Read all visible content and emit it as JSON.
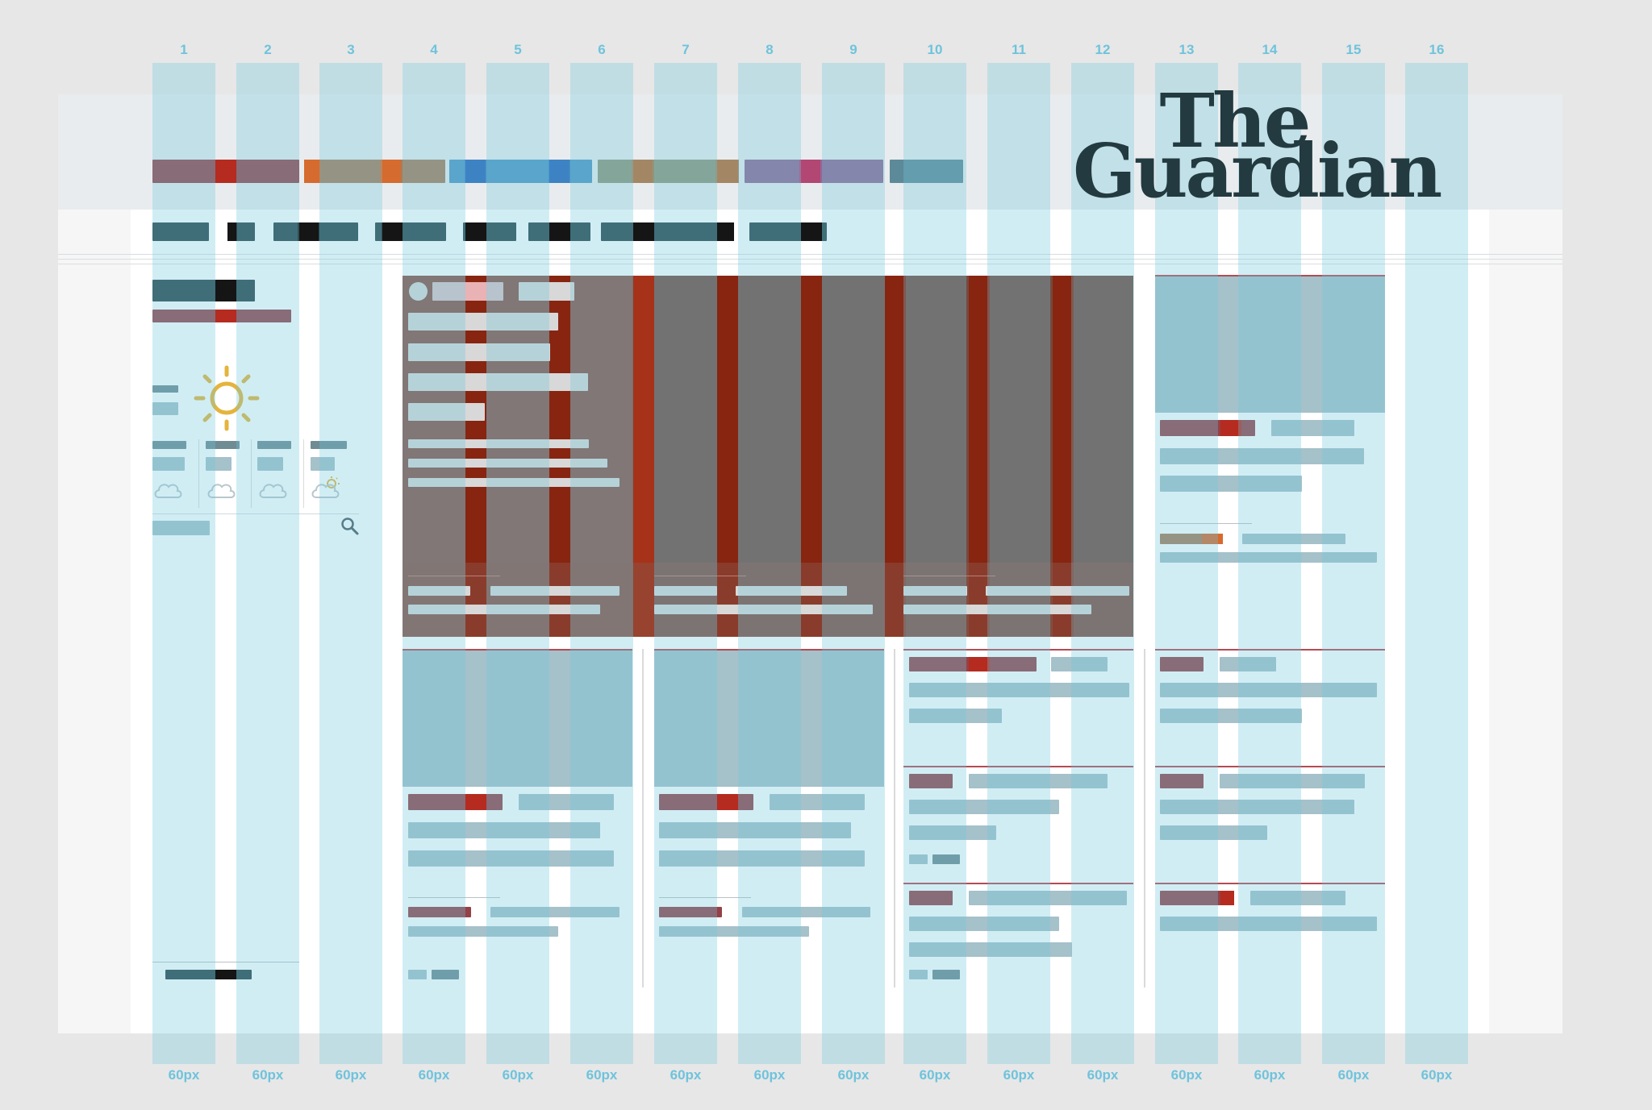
{
  "masthead": {
    "logo_line1": "The",
    "logo_line2": "Guardian"
  },
  "grid": {
    "columns": [
      {
        "number": "1",
        "width_label": "60px"
      },
      {
        "number": "2",
        "width_label": "60px"
      },
      {
        "number": "3",
        "width_label": "60px"
      },
      {
        "number": "4",
        "width_label": "60px"
      },
      {
        "number": "5",
        "width_label": "60px"
      },
      {
        "number": "6",
        "width_label": "60px"
      },
      {
        "number": "7",
        "width_label": "60px"
      },
      {
        "number": "8",
        "width_label": "60px"
      },
      {
        "number": "9",
        "width_label": "60px"
      },
      {
        "number": "10",
        "width_label": "60px"
      },
      {
        "number": "11",
        "width_label": "60px"
      },
      {
        "number": "12",
        "width_label": "60px"
      },
      {
        "number": "13",
        "width_label": "60px"
      },
      {
        "number": "14",
        "width_label": "60px"
      },
      {
        "number": "15",
        "width_label": "60px"
      },
      {
        "number": "16",
        "width_label": "60px"
      }
    ]
  },
  "colors": {
    "pillar_news": "#944148",
    "pillar_opinion": "#a77d5a",
    "pillar_sport": "#4e95c3",
    "pillar_culture": "#8e977b",
    "pillar_lifestyle": "#906895",
    "pillar_more": "#5d8a98",
    "hero_background": "#754a40",
    "grid_overlay": "#70c6de",
    "logo": "#223a40"
  },
  "icons": {
    "weather_main": "sun-icon",
    "forecast": [
      "cloud-icon",
      "cloud-icon",
      "cloud-icon",
      "sun-cloud-icon"
    ],
    "search": "search-icon"
  }
}
